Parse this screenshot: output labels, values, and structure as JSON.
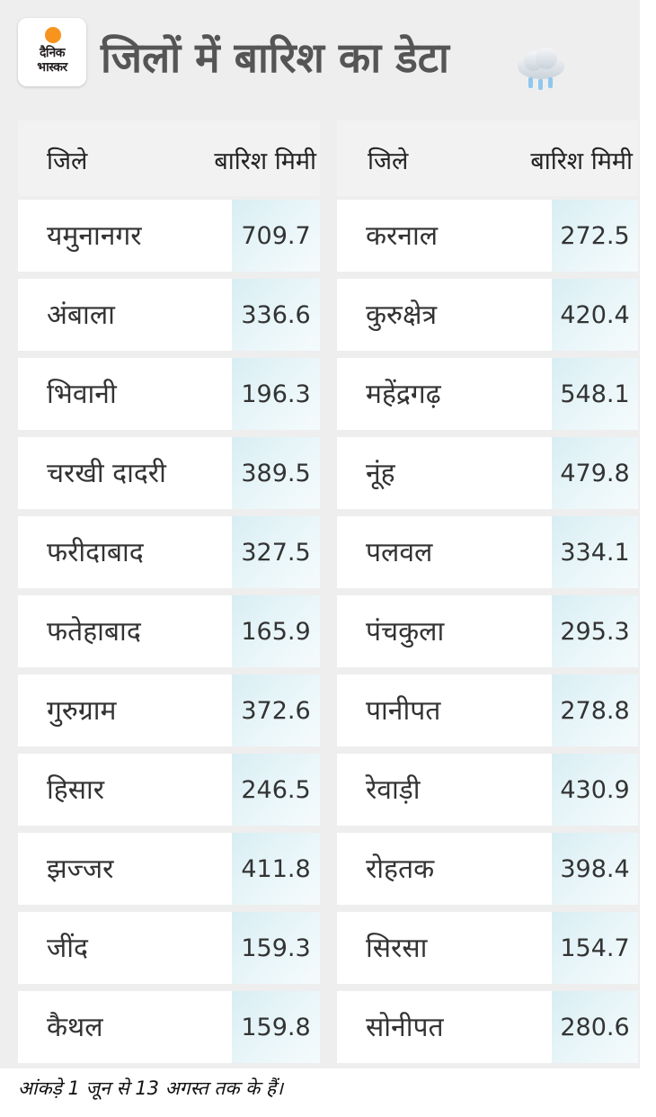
{
  "brand": {
    "line1": "दैनिक",
    "line2": "भास्कर",
    "accent_color": "#f7941d"
  },
  "title": "जिलों में बारिश का डेटा",
  "weather_icon": "rain-cloud-icon",
  "table_headers": {
    "district": "जिले",
    "rain": "बारिश मिमी"
  },
  "left_rows": [
    {
      "district": "यमुनानगर",
      "rain": "709.7"
    },
    {
      "district": "अंबाला",
      "rain": "336.6"
    },
    {
      "district": "भिवानी",
      "rain": "196.3"
    },
    {
      "district": "चरखी दादरी",
      "rain": "389.5"
    },
    {
      "district": "फरीदाबाद",
      "rain": "327.5"
    },
    {
      "district": "फतेहाबाद",
      "rain": "165.9"
    },
    {
      "district": "गुरुग्राम",
      "rain": "372.6"
    },
    {
      "district": "हिसार",
      "rain": "246.5"
    },
    {
      "district": "झज्जर",
      "rain": "411.8"
    },
    {
      "district": "जींद",
      "rain": "159.3"
    },
    {
      "district": "कैथल",
      "rain": "159.8"
    }
  ],
  "right_rows": [
    {
      "district": "करनाल",
      "rain": "272.5"
    },
    {
      "district": "कुरुक्षेत्र",
      "rain": "420.4"
    },
    {
      "district": "महेंद्रगढ़",
      "rain": "548.1"
    },
    {
      "district": "नूंह",
      "rain": "479.8"
    },
    {
      "district": "पलवल",
      "rain": "334.1"
    },
    {
      "district": "पंचकुला",
      "rain": "295.3"
    },
    {
      "district": "पानीपत",
      "rain": "278.8"
    },
    {
      "district": "रेवाड़ी",
      "rain": "430.9"
    },
    {
      "district": "रोहतक",
      "rain": "398.4"
    },
    {
      "district": "सिरसा",
      "rain": "154.7"
    },
    {
      "district": "सोनीपत",
      "rain": "280.6"
    }
  ],
  "footnote": "आंकड़े 1 जून से 13 अगस्त तक के हैं।"
}
